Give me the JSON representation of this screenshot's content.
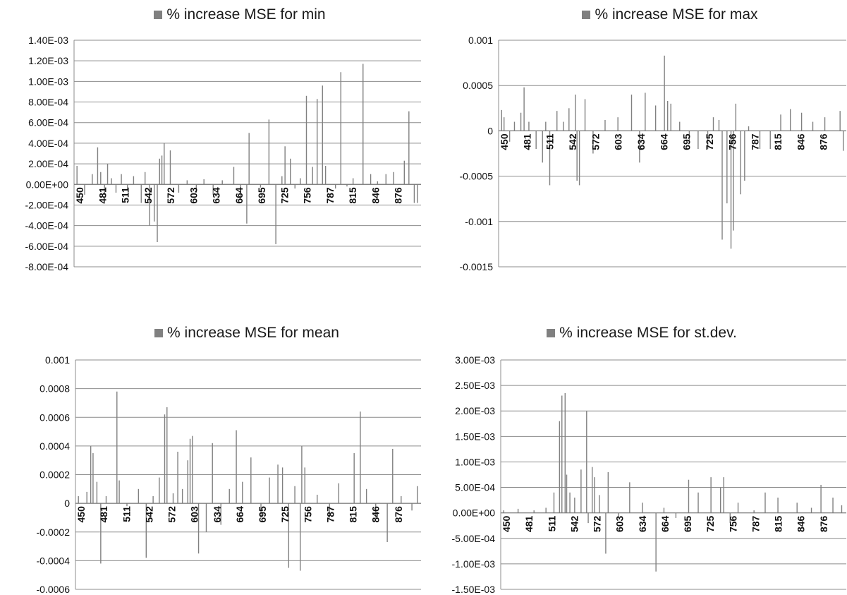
{
  "chart_data": [
    {
      "type": "bar",
      "title": "% increase MSE for min",
      "legend": "% increase MSE for min",
      "series_color": "#808080",
      "grid": true,
      "ylim": [
        -0.0008,
        0.0014
      ],
      "yticks": [
        0.0014,
        0.0012,
        0.001,
        0.0008,
        0.0006,
        0.0004,
        0.0002,
        0,
        -0.0002,
        -0.0004,
        -0.0006,
        -0.0008
      ],
      "ytick_labels": [
        "1.40E-03",
        "1.20E-03",
        "1.00E-03",
        "8.00E-04",
        "6.00E-04",
        "4.00E-04",
        "2.00E-04",
        "0.00E+00",
        "-2.00E-04",
        "-4.00E-04",
        "-6.00E-04",
        "-8.00E-04"
      ],
      "xtick_labels": [
        "450",
        "481",
        "511",
        "542",
        "572",
        "603",
        "634",
        "664",
        "695",
        "725",
        "756",
        "787",
        "815",
        "846",
        "876"
      ],
      "xlim": [
        450,
        900
      ],
      "points": [
        [
          452,
          0.00018
        ],
        [
          462,
          -0.0001
        ],
        [
          472,
          0.0001
        ],
        [
          479,
          0.00036
        ],
        [
          483,
          0.00012
        ],
        [
          488,
          -0.0001
        ],
        [
          492,
          0.0002
        ],
        [
          497,
          6e-05
        ],
        [
          503,
          -8e-05
        ],
        [
          510,
          0.0001
        ],
        [
          518,
          -5e-05
        ],
        [
          526,
          8e-05
        ],
        [
          536,
          -0.00018
        ],
        [
          541,
          0.00012
        ],
        [
          547,
          -0.0004
        ],
        [
          553,
          -0.00036
        ],
        [
          557,
          -0.00056
        ],
        [
          560,
          0.00025
        ],
        [
          563,
          0.00028
        ],
        [
          566,
          0.0004
        ],
        [
          574,
          0.00033
        ],
        [
          585,
          -8e-05
        ],
        [
          596,
          4e-05
        ],
        [
          608,
          -8e-05
        ],
        [
          618,
          5e-05
        ],
        [
          630,
          -0.0001
        ],
        [
          642,
          4e-05
        ],
        [
          657,
          0.00017
        ],
        [
          666,
          -0.00015
        ],
        [
          674,
          -0.00038
        ],
        [
          677,
          0.0005
        ],
        [
          692,
          -3e-05
        ],
        [
          703,
          0.00063
        ],
        [
          712,
          -0.00058
        ],
        [
          720,
          8e-05
        ],
        [
          724,
          0.00037
        ],
        [
          731,
          0.00025
        ],
        [
          737,
          -4e-05
        ],
        [
          744,
          6e-05
        ],
        [
          752,
          0.00086
        ],
        [
          760,
          0.00017
        ],
        [
          766,
          0.00083
        ],
        [
          773,
          0.00096
        ],
        [
          777,
          0.00018
        ],
        [
          790,
          -4e-05
        ],
        [
          797,
          0.00109
        ],
        [
          805,
          -2e-05
        ],
        [
          813,
          6e-05
        ],
        [
          826,
          0.00117
        ],
        [
          836,
          0.0001
        ],
        [
          845,
          3e-05
        ],
        [
          856,
          0.0001
        ],
        [
          866,
          0.00012
        ],
        [
          880,
          0.00023
        ],
        [
          886,
          0.00071
        ],
        [
          893,
          -0.00018
        ],
        [
          897,
          -0.00018
        ]
      ]
    },
    {
      "type": "bar",
      "title": "% increase MSE for max",
      "legend": "% increase MSE for max",
      "series_color": "#808080",
      "grid": true,
      "ylim": [
        -0.0015,
        0.001
      ],
      "yticks": [
        0.001,
        0.0005,
        0,
        -0.0005,
        -0.001,
        -0.0015
      ],
      "ytick_labels": [
        "0.001",
        "0.0005",
        "0",
        "-0.0005",
        "-0.001",
        "-0.0015"
      ],
      "xtick_labels": [
        "450",
        "481",
        "511",
        "542",
        "572",
        "603",
        "634",
        "664",
        "695",
        "725",
        "756",
        "787",
        "815",
        "846",
        "876"
      ],
      "xlim": [
        450,
        880
      ],
      "points": [
        [
          452,
          0.00023
        ],
        [
          455,
          0.00015
        ],
        [
          462,
          -0.00012
        ],
        [
          468,
          0.0001
        ],
        [
          476,
          0.0002
        ],
        [
          480,
          0.00048
        ],
        [
          486,
          0.0001
        ],
        [
          495,
          -0.0002
        ],
        [
          503,
          -0.00035
        ],
        [
          507,
          0.0001
        ],
        [
          512,
          -0.0006
        ],
        [
          521,
          0.00022
        ],
        [
          529,
          0.0001
        ],
        [
          536,
          0.00025
        ],
        [
          544,
          0.0004
        ],
        [
          546,
          -0.00055
        ],
        [
          549,
          -0.0006
        ],
        [
          556,
          0.00035
        ],
        [
          566,
          -0.00025
        ],
        [
          581,
          0.00012
        ],
        [
          597,
          0.00015
        ],
        [
          614,
          0.0004
        ],
        [
          624,
          -0.00035
        ],
        [
          631,
          0.00042
        ],
        [
          644,
          0.00028
        ],
        [
          655,
          0.00083
        ],
        [
          659,
          0.00033
        ],
        [
          663,
          0.0003
        ],
        [
          674,
          0.0001
        ],
        [
          686,
          -0.00012
        ],
        [
          697,
          -0.0002
        ],
        [
          709,
          -0.0002
        ],
        [
          716,
          0.00015
        ],
        [
          723,
          0.00012
        ],
        [
          727,
          -0.0012
        ],
        [
          733,
          -0.0008
        ],
        [
          738,
          -0.0013
        ],
        [
          741,
          -0.0011
        ],
        [
          744,
          0.0003
        ],
        [
          750,
          -0.0007
        ],
        [
          755,
          -0.00055
        ],
        [
          760,
          5e-05
        ],
        [
          774,
          -0.0002
        ],
        [
          787,
          -0.0002
        ],
        [
          800,
          0.00018
        ],
        [
          812,
          0.00024
        ],
        [
          826,
          0.0002
        ],
        [
          840,
          0.0001
        ],
        [
          855,
          0.00015
        ],
        [
          874,
          0.00022
        ],
        [
          878,
          -0.00022
        ]
      ]
    },
    {
      "type": "bar",
      "title": "% increase MSE for mean",
      "legend": "% increase MSE for mean",
      "series_color": "#808080",
      "grid": true,
      "ylim": [
        -0.0006,
        0.001
      ],
      "yticks": [
        0.001,
        0.0008,
        0.0006,
        0.0004,
        0.0002,
        0,
        -0.0002,
        -0.0004,
        -0.0006
      ],
      "ytick_labels": [
        "0.001",
        "0.0008",
        "0.0006",
        "0.0004",
        "0.0002",
        "0",
        "-0.0002",
        "-0.0004",
        "-0.0006"
      ],
      "xtick_labels": [
        "450",
        "481",
        "511",
        "542",
        "572",
        "603",
        "634",
        "664",
        "695",
        "725",
        "756",
        "787",
        "815",
        "846",
        "876"
      ],
      "xlim": [
        450,
        895
      ],
      "points": [
        [
          452,
          5e-05
        ],
        [
          463,
          8e-05
        ],
        [
          468,
          0.0004
        ],
        [
          471,
          0.00035
        ],
        [
          476,
          0.00015
        ],
        [
          481,
          -0.00042
        ],
        [
          488,
          5e-05
        ],
        [
          502,
          0.00078
        ],
        [
          505,
          0.00016
        ],
        [
          515,
          -2e-05
        ],
        [
          530,
          0.0001
        ],
        [
          540,
          -0.00038
        ],
        [
          549,
          5e-05
        ],
        [
          557,
          0.00018
        ],
        [
          564,
          0.00062
        ],
        [
          567,
          0.00067
        ],
        [
          575,
          7e-05
        ],
        [
          581,
          0.00036
        ],
        [
          587,
          0.0001
        ],
        [
          594,
          0.0003
        ],
        [
          597,
          0.00045
        ],
        [
          600,
          0.00047
        ],
        [
          608,
          -0.00035
        ],
        [
          618,
          -0.0002
        ],
        [
          626,
          0.00042
        ],
        [
          637,
          -0.00015
        ],
        [
          648,
          0.0001
        ],
        [
          657,
          0.00051
        ],
        [
          665,
          0.00015
        ],
        [
          676,
          0.00032
        ],
        [
          689,
          -0.0001
        ],
        [
          700,
          0.00018
        ],
        [
          711,
          0.00027
        ],
        [
          717,
          0.00025
        ],
        [
          725,
          -0.00045
        ],
        [
          733,
          0.00012
        ],
        [
          740,
          -0.00047
        ],
        [
          742,
          0.0004
        ],
        [
          746,
          0.00025
        ],
        [
          762,
          6e-05
        ],
        [
          778,
          -0.0001
        ],
        [
          790,
          0.00014
        ],
        [
          810,
          0.00035
        ],
        [
          818,
          0.00064
        ],
        [
          826,
          0.0001
        ],
        [
          838,
          -0.0001
        ],
        [
          853,
          -0.00027
        ],
        [
          860,
          0.00038
        ],
        [
          871,
          5e-05
        ],
        [
          885,
          -5e-05
        ],
        [
          892,
          0.00012
        ]
      ]
    },
    {
      "type": "bar",
      "title": "% increase MSE for st.dev.",
      "legend": "% increase MSE for st.dev.",
      "series_color": "#808080",
      "grid": true,
      "ylim": [
        -0.0015,
        0.003
      ],
      "yticks": [
        0.003,
        0.0025,
        0.002,
        0.0015,
        0.001,
        0.0005,
        0,
        -0.0005,
        -0.001,
        -0.0015
      ],
      "ytick_labels": [
        "3.00E-03",
        "2.50E-03",
        "2.00E-03",
        "1.50E-03",
        "1.00E-03",
        "5.00E-04",
        "0.00E+00",
        "-5.00E-04",
        "-1.00E-03",
        "-1.50E-03"
      ],
      "xtick_labels": [
        "450",
        "481",
        "511",
        "542",
        "572",
        "603",
        "634",
        "664",
        "695",
        "725",
        "756",
        "787",
        "815",
        "846",
        "876"
      ],
      "xlim": [
        450,
        880
      ],
      "points": [
        [
          452,
          5e-05
        ],
        [
          470,
          8e-05
        ],
        [
          490,
          5e-05
        ],
        [
          505,
          0.0001
        ],
        [
          515,
          0.0004
        ],
        [
          522,
          0.0018
        ],
        [
          525,
          0.0023
        ],
        [
          529,
          0.00235
        ],
        [
          531,
          0.00075
        ],
        [
          535,
          0.0004
        ],
        [
          541,
          0.0003
        ],
        [
          549,
          0.00085
        ],
        [
          556,
          0.002
        ],
        [
          558,
          -0.0002
        ],
        [
          563,
          0.0009
        ],
        [
          566,
          0.0007
        ],
        [
          572,
          0.00035
        ],
        [
          580,
          -0.0008
        ],
        [
          583,
          0.0008
        ],
        [
          596,
          -0.0001
        ],
        [
          610,
          0.0006
        ],
        [
          626,
          0.0002
        ],
        [
          643,
          -0.00115
        ],
        [
          653,
          0.0001
        ],
        [
          668,
          -0.0001
        ],
        [
          684,
          0.00065
        ],
        [
          696,
          0.0004
        ],
        [
          712,
          0.0007
        ],
        [
          724,
          0.0005
        ],
        [
          728,
          0.0007
        ],
        [
          736,
          -0.0002
        ],
        [
          746,
          0.0002
        ],
        [
          766,
          5e-05
        ],
        [
          780,
          0.0004
        ],
        [
          796,
          0.0003
        ],
        [
          820,
          0.0002
        ],
        [
          838,
          0.0001
        ],
        [
          850,
          0.00055
        ],
        [
          865,
          0.0003
        ],
        [
          876,
          0.00015
        ]
      ]
    }
  ]
}
